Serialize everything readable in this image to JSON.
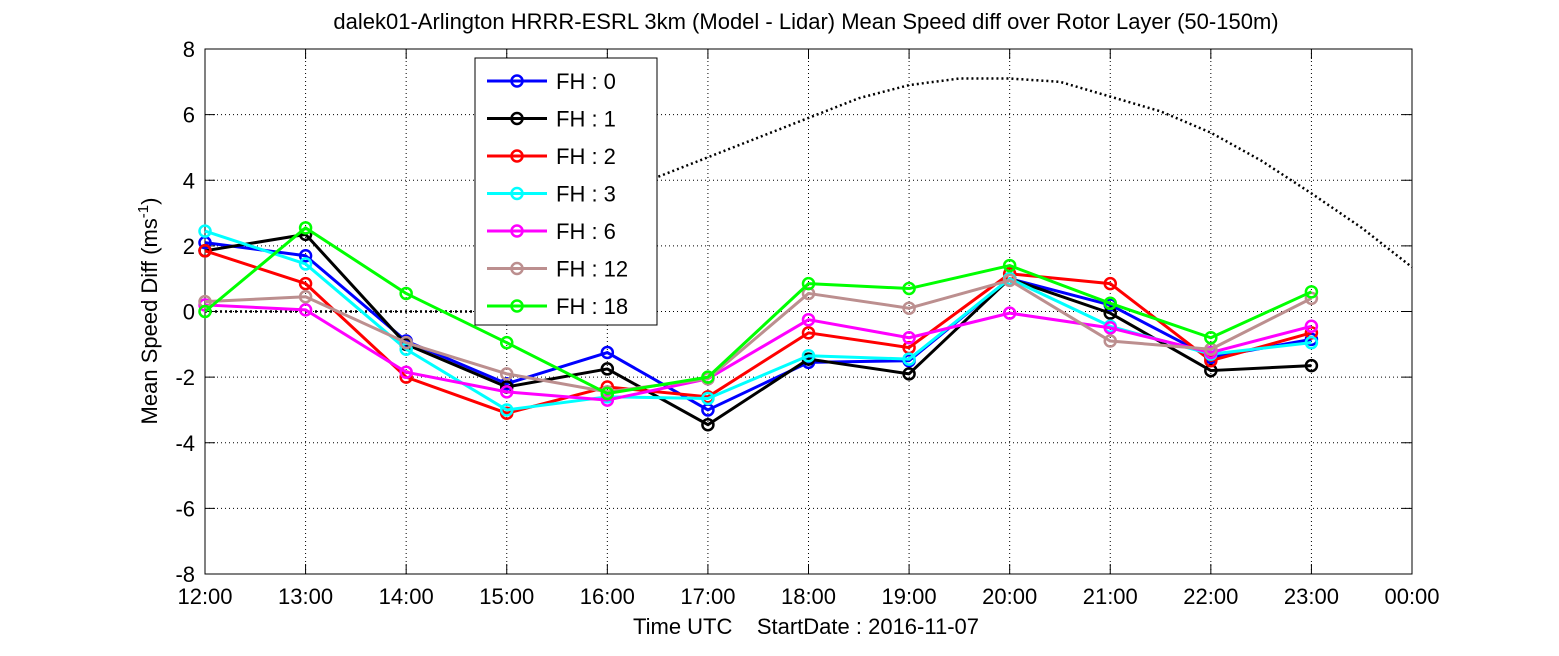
{
  "chart_data": {
    "type": "line",
    "title": "dalek01-Arlington HRRR-ESRL 3km (Model - Lidar) Mean Speed diff over Rotor Layer (50-150m)",
    "xlabel": "Time UTC    StartDate : 2016-11-07",
    "ylabel_main": "Mean Speed Diff (ms",
    "ylabel_sup": "-1",
    "ylabel_tail": ")",
    "ylim": [
      -8,
      8
    ],
    "yticks": [
      -8,
      -6,
      -4,
      -2,
      0,
      2,
      4,
      6,
      8
    ],
    "xlim": [
      12,
      24
    ],
    "x": [
      12,
      13,
      14,
      15,
      16,
      17,
      18,
      19,
      20,
      21,
      22,
      23
    ],
    "xtick_labels": [
      "12:00",
      "13:00",
      "14:00",
      "15:00",
      "16:00",
      "17:00",
      "18:00",
      "19:00",
      "20:00",
      "21:00",
      "22:00",
      "23:00",
      "00:00"
    ],
    "grid": true,
    "legend_position": "top-left",
    "series": [
      {
        "name": "FH : 0",
        "color": "#0000ff",
        "values": [
          2.1,
          1.7,
          -0.9,
          -2.2,
          -1.25,
          -3.0,
          -1.55,
          -1.5,
          1.0,
          0.2,
          -1.4,
          -0.85
        ]
      },
      {
        "name": "FH : 1",
        "color": "#000000",
        "values": [
          1.85,
          2.35,
          -1.0,
          -2.3,
          -1.75,
          -3.45,
          -1.45,
          -1.9,
          1.0,
          -0.05,
          -1.8,
          -1.65
        ]
      },
      {
        "name": "FH : 2",
        "color": "#ff0000",
        "values": [
          1.85,
          0.85,
          -2.0,
          -3.1,
          -2.3,
          -2.6,
          -0.65,
          -1.1,
          1.15,
          0.85,
          -1.5,
          -0.65
        ]
      },
      {
        "name": "FH : 3",
        "color": "#00ffff",
        "values": [
          2.45,
          1.45,
          -1.15,
          -3.0,
          -2.6,
          -2.65,
          -1.35,
          -1.45,
          1.0,
          -0.45,
          -1.3,
          -0.95
        ]
      },
      {
        "name": "FH : 6",
        "color": "#ff00ff",
        "values": [
          0.2,
          0.05,
          -1.85,
          -2.45,
          -2.7,
          -2.05,
          -0.25,
          -0.8,
          -0.05,
          -0.5,
          -1.25,
          -0.45
        ]
      },
      {
        "name": "FH : 12",
        "color": "#bc8f8f",
        "values": [
          0.3,
          0.45,
          -0.95,
          -1.9,
          -2.45,
          -2.05,
          0.55,
          0.1,
          0.95,
          -0.9,
          -1.15,
          0.4
        ]
      },
      {
        "name": "FH : 18",
        "color": "#00ff00",
        "values": [
          0.0,
          2.55,
          0.55,
          -0.95,
          -2.5,
          -2.0,
          0.85,
          0.7,
          1.4,
          0.25,
          -0.8,
          0.6
        ]
      }
    ],
    "reference_curve": {
      "style": "dotted",
      "color": "#000000",
      "x": [
        12,
        14,
        15,
        15.5,
        16,
        16.5,
        17,
        17.5,
        18,
        18.5,
        19,
        19.5,
        20,
        20.5,
        21,
        21.5,
        22,
        22.5,
        23,
        23.5,
        24
      ],
      "values": [
        0,
        0,
        0,
        2.3,
        3.3,
        4.1,
        4.7,
        5.3,
        5.9,
        6.5,
        6.9,
        7.1,
        7.1,
        7.0,
        6.55,
        6.1,
        5.45,
        4.6,
        3.6,
        2.55,
        1.35
      ]
    }
  }
}
